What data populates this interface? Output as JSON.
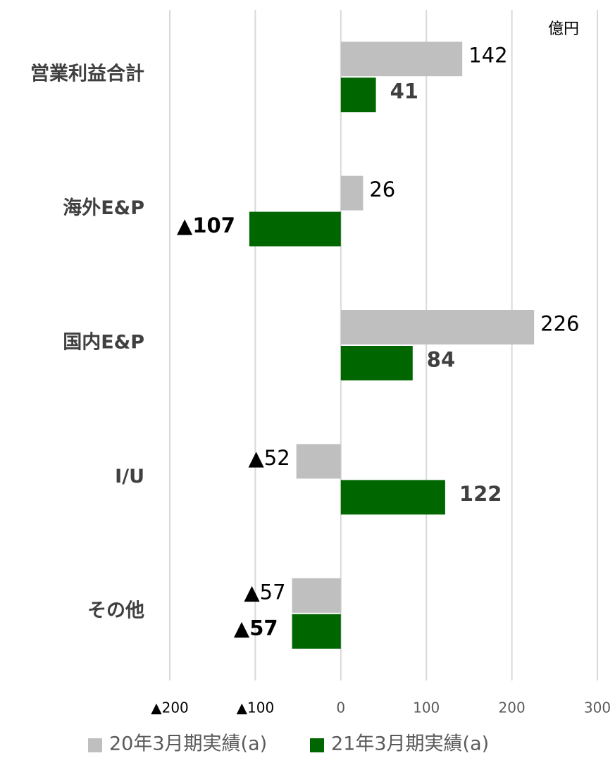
{
  "chart_data": {
    "type": "hbar",
    "unit": "億円",
    "categories": [
      "営業利益合計",
      "海外E&P",
      "国内E&P",
      "I/U",
      "その他"
    ],
    "series": [
      {
        "name": "20年3月期実績(a)",
        "color": "#bfbfbf",
        "values": [
          142,
          26,
          226,
          -52,
          -57
        ],
        "value_labels": [
          "142",
          "26",
          "226",
          "▲52",
          "▲57"
        ]
      },
      {
        "name": "21年3月期実績(a)",
        "color": "#006600",
        "values": [
          41,
          -107,
          84,
          122,
          -57
        ],
        "value_labels": [
          "41",
          "▲107",
          "84",
          "122",
          "▲57"
        ]
      }
    ],
    "xlim": [
      -200,
      300
    ],
    "xticks": [
      {
        "value": -200,
        "label": "▲200"
      },
      {
        "value": -100,
        "label": "▲100"
      },
      0,
      100,
      200,
      300
    ],
    "grid": true,
    "legend": "bottom"
  }
}
